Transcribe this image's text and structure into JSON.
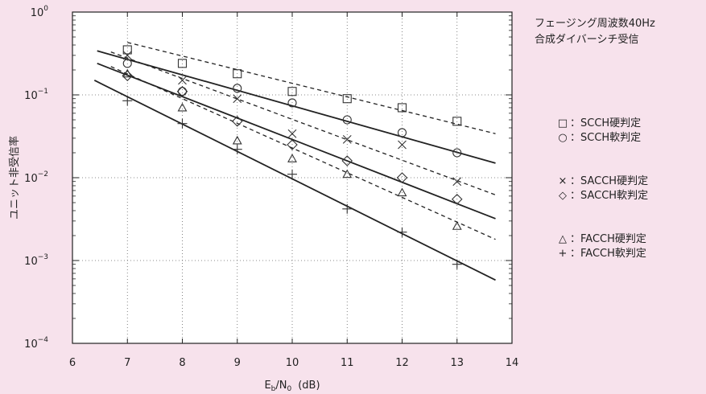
{
  "header": {
    "line1": "フェージング周波数40Hz",
    "line2": "合成ダイバーシチ受信"
  },
  "legend": [
    {
      "symbol": "□",
      "label": "：SCCH硬判定",
      "marker": "square"
    },
    {
      "symbol": "○",
      "label": "：SCCH軟判定",
      "marker": "circle"
    },
    {
      "symbol": "×",
      "label": "：SACCH硬判定",
      "marker": "x"
    },
    {
      "symbol": "◇",
      "label": "：SACCH軟判定",
      "marker": "diamond"
    },
    {
      "symbol": "△",
      "label": "：FACCH硬判定",
      "marker": "triangle"
    },
    {
      "symbol": "+",
      "label": "：FACCH軟判定",
      "marker": "plus"
    }
  ],
  "chart_data": {
    "type": "scatter",
    "xlabel": "Eb/N0 (dB)",
    "xlabel_main": "E",
    "xlabel_sub1": "b",
    "xlabel_mid": "/N",
    "xlabel_sub2": "0",
    "xlabel_unit": "(dB)",
    "ylabel": "ユニット非受信率",
    "xlim": [
      6,
      14
    ],
    "ylim_exp": [
      -4,
      0
    ],
    "yscale": "log",
    "grid": true,
    "xticks": [
      "6",
      "7",
      "8",
      "9",
      "10",
      "11",
      "12",
      "13",
      "14"
    ],
    "yticks": [
      {
        "base": "10",
        "exp": "0"
      },
      {
        "base": "10",
        "exp": "−1"
      },
      {
        "base": "10",
        "exp": "−2"
      },
      {
        "base": "10",
        "exp": "−3"
      },
      {
        "base": "10",
        "exp": "−4"
      }
    ],
    "series": [
      {
        "label": "SCCH硬判定",
        "marker": "square",
        "line": "dashed",
        "x": [
          7,
          8,
          9,
          10,
          11,
          12,
          13
        ],
        "y": [
          0.35,
          0.24,
          0.18,
          0.11,
          0.09,
          0.07,
          0.048
        ],
        "fit": [
          [
            7,
            0.43
          ],
          [
            13.7,
            0.034
          ]
        ]
      },
      {
        "label": "SCCH軟判定",
        "marker": "circle",
        "line": "solid",
        "x": [
          7,
          8,
          9,
          10,
          11,
          12,
          13
        ],
        "y": [
          0.24,
          0.11,
          0.12,
          0.08,
          0.05,
          0.035,
          0.02
        ],
        "fit": [
          [
            6.45,
            0.34
          ],
          [
            13.7,
            0.015
          ]
        ]
      },
      {
        "label": "SACCH硬判定",
        "marker": "x",
        "line": "dashed",
        "x": [
          7,
          8,
          9,
          10,
          11,
          12,
          13
        ],
        "y": [
          0.3,
          0.15,
          0.09,
          0.034,
          0.029,
          0.025,
          0.009
        ],
        "fit": [
          [
            6.7,
            0.33
          ],
          [
            13.7,
            0.0062
          ]
        ]
      },
      {
        "label": "SACCH軟判定",
        "marker": "diamond",
        "line": "solid",
        "x": [
          7,
          8,
          9,
          10,
          11,
          12,
          13
        ],
        "y": [
          0.17,
          0.11,
          0.048,
          0.025,
          0.016,
          0.01,
          0.0055
        ],
        "fit": [
          [
            6.45,
            0.24
          ],
          [
            13.7,
            0.0032
          ]
        ]
      },
      {
        "label": "FACCH硬判定",
        "marker": "triangle",
        "line": "dashed",
        "x": [
          7,
          8,
          9,
          10,
          11,
          12,
          13
        ],
        "y": [
          0.18,
          0.07,
          0.028,
          0.017,
          0.011,
          0.0066,
          0.0026
        ],
        "fit": [
          [
            6.7,
            0.22
          ],
          [
            13.7,
            0.0018
          ]
        ]
      },
      {
        "label": "FACCH軟判定",
        "marker": "plus",
        "line": "solid",
        "x": [
          7,
          8,
          9,
          10,
          11,
          12,
          13
        ],
        "y": [
          0.085,
          0.045,
          0.022,
          0.011,
          0.0042,
          0.0022,
          0.0009
        ],
        "fit": [
          [
            6.4,
            0.15
          ],
          [
            13.7,
            0.00058
          ]
        ]
      }
    ]
  }
}
